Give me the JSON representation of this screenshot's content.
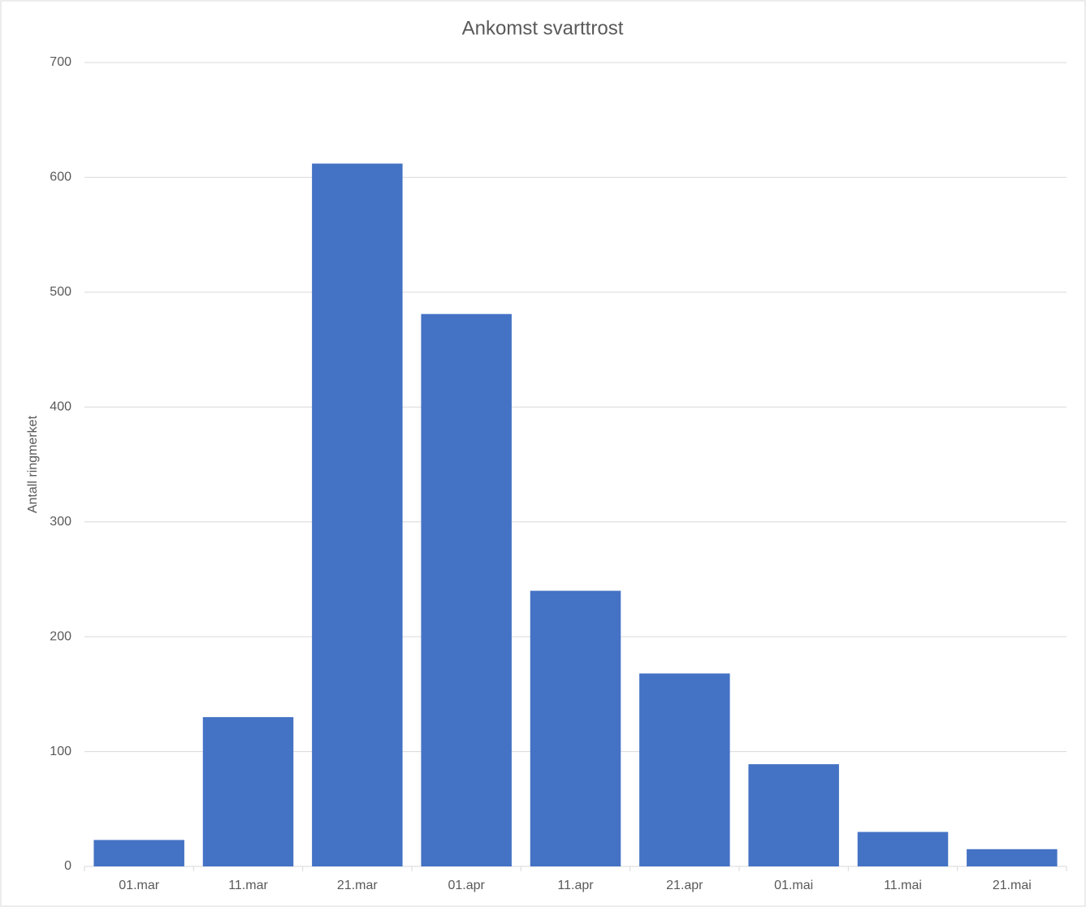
{
  "chart_data": {
    "type": "bar",
    "title": "Ankomst svarttrost",
    "y_label": "Antall ringmerket",
    "categories": [
      "01.mar",
      "11.mar",
      "21.mar",
      "01.apr",
      "11.apr",
      "21.apr",
      "01.mai",
      "11.mai",
      "21.mai"
    ],
    "values": [
      23,
      130,
      612,
      481,
      240,
      168,
      89,
      30,
      15
    ],
    "color": "#4472c4",
    "ylim": [
      0,
      700
    ],
    "yticks": [
      0,
      100,
      200,
      300,
      400,
      500,
      600,
      700
    ],
    "grid": true
  }
}
